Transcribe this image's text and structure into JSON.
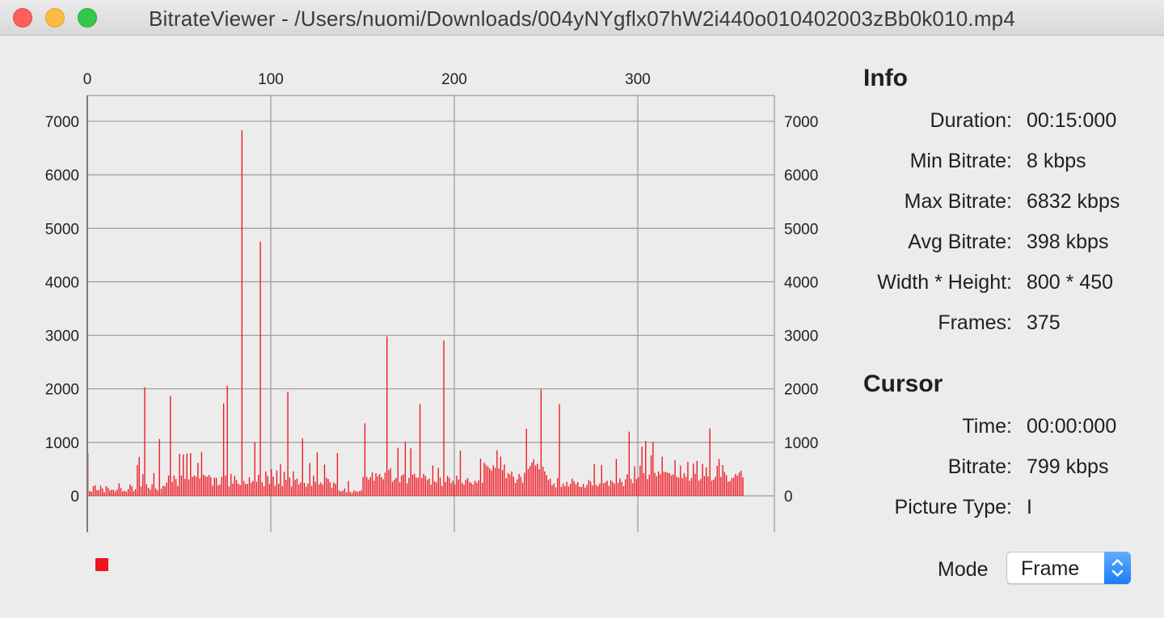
{
  "window": {
    "title": "BitrateViewer - /Users/nuomi/Downloads/004yNYgflx07hW2i440o010402003zBb0k010.mp4",
    "close_icon": "close-icon",
    "minimize_icon": "minimize-icon",
    "maximize_icon": "maximize-icon"
  },
  "info": {
    "title": "Info",
    "rows": [
      {
        "label": "Duration:",
        "value": "00:15:000"
      },
      {
        "label": "Min Bitrate:",
        "value": "8 kbps"
      },
      {
        "label": "Max Bitrate:",
        "value": "6832 kbps"
      },
      {
        "label": "Avg Bitrate:",
        "value": "398 kbps"
      },
      {
        "label": "Width * Height:",
        "value": "800 * 450"
      },
      {
        "label": "Frames:",
        "value": "375"
      }
    ]
  },
  "cursor": {
    "title": "Cursor",
    "rows": [
      {
        "label": "Time:",
        "value": "00:00:000"
      },
      {
        "label": "Bitrate:",
        "value": "799 kbps"
      },
      {
        "label": "Picture Type:",
        "value": "I"
      }
    ]
  },
  "mode": {
    "label": "Mode",
    "selected": "Frame",
    "icon": "chevron-up-down-icon"
  },
  "colors": {
    "bar": "#f0141e",
    "grid": "#9a9a9a",
    "accent": "#1a7cf5"
  },
  "chart_data": {
    "type": "bar",
    "title": "",
    "xlabel": "",
    "ylabel": "",
    "xlim": [
      0,
      375
    ],
    "ylim": [
      -700,
      7500
    ],
    "x_ticks": [
      0,
      100,
      200,
      300
    ],
    "y_ticks": [
      0,
      1000,
      2000,
      3000,
      4000,
      5000,
      6000,
      7000
    ],
    "grid": true,
    "legend": "bottom-left",
    "series": [
      {
        "values": [
          799,
          90,
          75,
          181,
          196,
          104,
          108,
          191,
          137,
          67,
          180,
          152,
          104,
          115,
          113,
          84,
          120,
          234,
          148,
          83,
          93,
          79,
          124,
          212,
          176,
          90,
          124,
          577,
          727,
          175,
          407,
          2030,
          217,
          152,
          114,
          213,
          428,
          140,
          106,
          1063,
          134,
          189,
          181,
          247,
          379,
          1867,
          261,
          381,
          316,
          186,
          786,
          377,
          773,
          318,
          791,
          306,
          801,
          353,
          381,
          358,
          619,
          321,
          820,
          398,
          371,
          358,
          391,
          353,
          190,
          339,
          338,
          195,
          214,
          359,
          1728,
          380,
          2060,
          177,
          410,
          228,
          376,
          297,
          228,
          200,
          6832,
          278,
          221,
          224,
          348,
          245,
          279,
          1001,
          264,
          393,
          4752,
          253,
          181,
          457,
          370,
          224,
          500,
          360,
          187,
          474,
          228,
          597,
          182,
          449,
          300,
          1946,
          345,
          176,
          458,
          297,
          322,
          213,
          250,
          1074,
          244,
          172,
          229,
          614,
          187,
          376,
          264,
          812,
          213,
          249,
          207,
          584,
          339,
          315,
          255,
          152,
          250,
          225,
          800,
          99,
          83,
          98,
          139,
          66,
          276,
          77,
          55,
          100,
          89,
          76,
          89,
          103,
          355,
          1355,
          354,
          304,
          349,
          438,
          283,
          425,
          367,
          410,
          348,
          309,
          434,
          2981,
          482,
          518,
          265,
          303,
          336,
          899,
          255,
          377,
          404,
          1010,
          233,
          336,
          888,
          398,
          411,
          341,
          340,
          1713,
          330,
          412,
          371,
          297,
          323,
          210,
          568,
          271,
          250,
          521,
          343,
          186,
          2903,
          260,
          371,
          337,
          238,
          285,
          218,
          376,
          302,
          846,
          244,
          207,
          299,
          330,
          258,
          240,
          211,
          284,
          244,
          287,
          697,
          243,
          618,
          580,
          553,
          512,
          475,
          571,
          524,
          850,
          510,
          733,
          482,
          588,
          331,
          427,
          401,
          458,
          360,
          241,
          308,
          410,
          358,
          246,
          429,
          1253,
          505,
          553,
          623,
          687,
          571,
          600,
          497,
          1993,
          545,
          458,
          389,
          296,
          321,
          198,
          231,
          158,
          335,
          1715,
          168,
          232,
          180,
          262,
          176,
          226,
          322,
          273,
          219,
          256,
          169,
          166,
          224,
          155,
          207,
          298,
          266,
          192,
          592,
          208,
          181,
          229,
          576,
          237,
          252,
          283,
          189,
          291,
          262,
          228,
          690,
          247,
          327,
          262,
          182,
          308,
          403,
          1200,
          314,
          238,
          549,
          312,
          348,
          566,
          922,
          425,
          1025,
          313,
          399,
          756,
          1008,
          431,
          368,
          458,
          404,
          731,
          449,
          445,
          434,
          423,
          383,
          401,
          665,
          357,
          339,
          566,
          331,
          422,
          358,
          636,
          282,
          334,
          605,
          413,
          653,
          287,
          315,
          594,
          370,
          533,
          363,
          1261,
          284,
          303,
          357,
          560,
          689,
          354,
          574,
          447,
          387,
          263,
          278,
          332,
          340,
          410,
          377,
          435,
          470,
          346
        ]
      }
    ]
  }
}
